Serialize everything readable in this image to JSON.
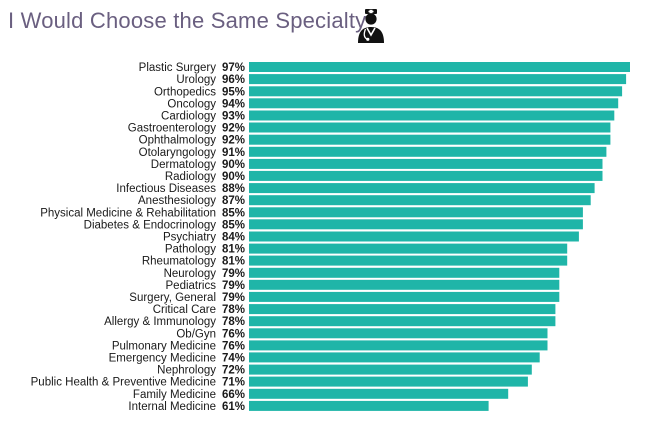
{
  "title": "I Would Choose the Same Specialty",
  "icon": "doctor-icon",
  "chart_data": {
    "type": "bar",
    "orientation": "horizontal",
    "title": "I Would Choose the Same Specialty",
    "bar_color": "#1fb5a8",
    "value_suffix": "%",
    "xlim": [
      0,
      100
    ],
    "grid": false,
    "categories": [
      "Plastic Surgery",
      "Urology",
      "Orthopedics",
      "Oncology",
      "Cardiology",
      "Gastroenterology",
      "Ophthalmology",
      "Otolaryngology",
      "Dermatology",
      "Radiology",
      "Infectious Diseases",
      "Anesthesiology",
      "Physical Medicine & Rehabilitation",
      "Diabetes & Endocrinology",
      "Psychiatry",
      "Pathology",
      "Rheumatology",
      "Neurology",
      "Pediatrics",
      "Surgery, General",
      "Critical Care",
      "Allergy & Immunology",
      "Ob/Gyn",
      "Pulmonary Medicine",
      "Emergency Medicine",
      "Nephrology",
      "Public Health & Preventive Medicine",
      "Family Medicine",
      "Internal Medicine"
    ],
    "values": [
      97,
      96,
      95,
      94,
      93,
      92,
      92,
      91,
      90,
      90,
      88,
      87,
      85,
      85,
      84,
      81,
      81,
      79,
      79,
      79,
      78,
      78,
      76,
      76,
      74,
      72,
      71,
      66,
      61
    ]
  }
}
